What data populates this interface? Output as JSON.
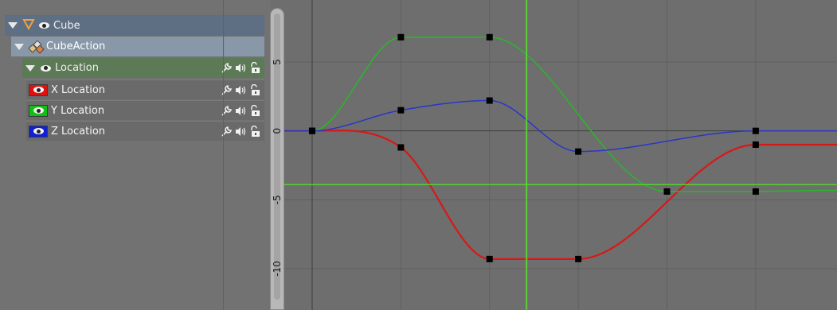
{
  "channels": {
    "object": {
      "label": "Cube"
    },
    "action": {
      "label": "CubeAction"
    },
    "group": {
      "label": "Location"
    },
    "items": [
      {
        "label": "X Location",
        "color": "#e01010"
      },
      {
        "label": "Y Location",
        "color": "#10c010"
      },
      {
        "label": "Z Location",
        "color": "#1020d0"
      }
    ]
  },
  "icons": {
    "expand": "triangle-down-icon",
    "visibility": "eye-icon",
    "object": "mesh-object-icon",
    "action": "action-icon",
    "modifier": "wrench-icon",
    "mute": "speaker-icon",
    "lock": "padlock-icon"
  },
  "colors": {
    "x_curve": "#d81818",
    "y_curve": "#28b828",
    "z_curve": "#2a36c8",
    "playhead": "#58d030",
    "cursor_line": "#58d030",
    "background": "#6e6e6e",
    "group_row": "#5c7a56",
    "action_row": "#8898a8",
    "object_row": "#5f6f83"
  },
  "chart_data": {
    "type": "line",
    "y_ticks": [
      "5",
      "0",
      "-5",
      "-10"
    ],
    "ylim": [
      -13,
      9.5
    ],
    "xlim": [
      -2.8,
      35.5
    ],
    "grid": true,
    "playhead_frame": 14.5,
    "cursor_value": -3.9,
    "series": [
      {
        "name": "X Location",
        "keys": [
          [
            0,
            0
          ],
          [
            6,
            -1.2
          ],
          [
            12,
            -9.3
          ],
          [
            18,
            -9.3
          ],
          [
            30,
            -1.0
          ]
        ],
        "extrapolated_end": -1.0
      },
      {
        "name": "Y Location",
        "keys": [
          [
            0,
            0
          ],
          [
            6,
            6.8
          ],
          [
            12,
            6.8
          ],
          [
            24,
            -4.4
          ],
          [
            30,
            -4.4
          ]
        ],
        "extrapolated_end": -4.3
      },
      {
        "name": "Z Location",
        "keys": [
          [
            0,
            0
          ],
          [
            6,
            1.5
          ],
          [
            12,
            2.2
          ],
          [
            18,
            -1.5
          ],
          [
            30,
            0
          ]
        ],
        "extrapolated_end": 0
      }
    ]
  }
}
